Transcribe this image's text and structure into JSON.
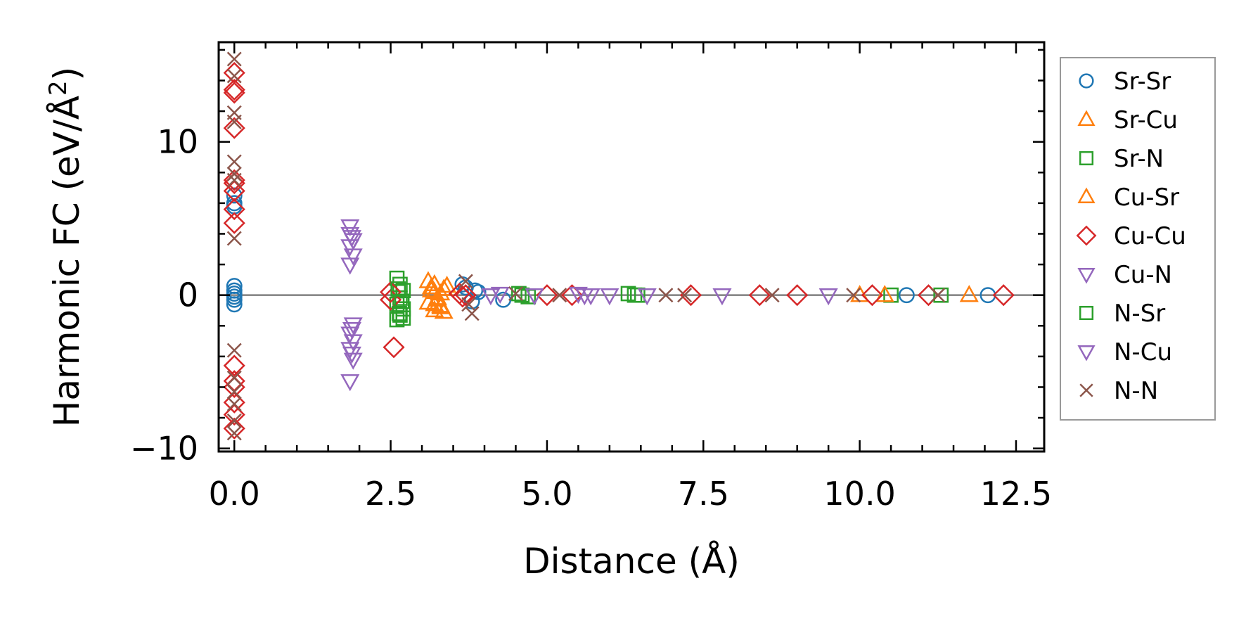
{
  "chart_data": {
    "type": "scatter",
    "xlabel": "Distance (Å)",
    "ylabel_prefix": "Harmonic FC (eV/Å",
    "ylabel_sup": "2",
    "ylabel_suffix": ")",
    "xlim": [
      -0.25,
      12.95
    ],
    "ylim": [
      -10.2,
      16.5
    ],
    "xticks": [
      0.0,
      2.5,
      5.0,
      7.5,
      10.0,
      12.5
    ],
    "xtick_labels": [
      "0.0",
      "2.5",
      "5.0",
      "7.5",
      "10.0",
      "12.5"
    ],
    "yticks": [
      -10,
      0,
      10
    ],
    "ytick_labels": [
      "−10",
      "0",
      "10"
    ],
    "zero_line": true,
    "legend_position": "outside-right",
    "series": [
      {
        "name": "Sr-Sr",
        "marker": "circle",
        "color": "#1f77b4",
        "x": [
          0,
          0,
          0,
          0,
          0,
          0,
          0,
          0,
          0,
          3.65,
          3.7,
          3.8,
          3.85,
          3.9,
          4.3,
          10.75,
          12.05
        ],
        "y": [
          6.0,
          6.5,
          5.8,
          0.6,
          0.3,
          0.1,
          -0.1,
          -0.3,
          -0.6,
          0.7,
          0.5,
          -0.4,
          0.3,
          0.2,
          -0.3,
          0.0,
          0.0
        ]
      },
      {
        "name": "Sr-Cu",
        "marker": "triangle-up",
        "color": "#ff7f0e",
        "x": [
          3.1,
          3.15,
          3.2,
          3.25,
          3.3,
          3.35,
          3.4,
          3.1,
          3.2,
          3.3,
          3.2,
          3.3,
          11.75
        ],
        "y": [
          0.9,
          0.5,
          0.2,
          -0.3,
          -0.7,
          -1.1,
          0.6,
          -0.5,
          0.7,
          0.1,
          -1.0,
          -0.8,
          0.0
        ]
      },
      {
        "name": "Sr-N",
        "marker": "square",
        "color": "#2ca02c",
        "x": [
          2.6,
          2.65,
          2.7,
          2.65,
          2.6,
          2.7,
          2.65,
          2.6,
          2.7,
          4.55,
          4.6,
          4.7,
          6.3,
          6.4,
          10.5,
          11.3
        ],
        "y": [
          1.1,
          0.7,
          0.3,
          -0.2,
          -0.6,
          -0.9,
          -1.3,
          -1.6,
          -1.5,
          0.1,
          0.0,
          -0.1,
          0.1,
          0.0,
          0.0,
          0.0
        ]
      },
      {
        "name": "Cu-Sr",
        "marker": "triangle-up",
        "color": "#ff7f0e",
        "x": [
          3.15,
          3.25,
          3.35,
          3.2,
          10.0,
          10.4
        ],
        "y": [
          0.3,
          -0.2,
          0.4,
          -0.6,
          0.0,
          0.0
        ]
      },
      {
        "name": "Cu-Cu",
        "marker": "diamond",
        "color": "#d62728",
        "x": [
          0,
          0,
          0,
          0,
          0,
          0,
          0,
          0,
          0,
          0,
          0,
          0,
          0,
          0,
          0,
          2.5,
          2.5,
          2.55,
          3.6,
          3.65,
          3.7,
          5.0,
          5.4,
          7.3,
          8.4,
          9.0,
          10.2,
          11.1,
          12.3
        ],
        "y": [
          14.5,
          13.4,
          13.2,
          10.9,
          7.5,
          7.3,
          6.8,
          5.6,
          4.7,
          -4.6,
          -5.6,
          -6.0,
          -7.0,
          -7.8,
          -8.7,
          0.2,
          -0.3,
          -3.4,
          0.1,
          -0.1,
          0.0,
          0.0,
          0.0,
          0.0,
          0.0,
          0.0,
          0.0,
          0.0,
          0.0
        ]
      },
      {
        "name": "Cu-N",
        "marker": "triangle-down",
        "color": "#9467bd",
        "x": [
          1.85,
          1.85,
          1.9,
          1.85,
          1.9,
          1.85,
          1.9,
          1.85,
          1.9,
          1.85,
          1.9,
          1.85,
          4.8,
          5.5,
          5.6,
          7.8,
          9.5
        ],
        "y": [
          4.5,
          4.0,
          3.6,
          3.2,
          2.6,
          2.0,
          -1.9,
          -2.5,
          -3.0,
          -3.5,
          -4.2,
          -5.6,
          0.0,
          0.1,
          0.0,
          0.0,
          0.0
        ]
      },
      {
        "name": "N-Sr",
        "marker": "square",
        "color": "#2ca02c",
        "x": [
          2.62,
          2.68,
          2.64,
          6.45
        ],
        "y": [
          0.4,
          -0.4,
          -1.2,
          0.0
        ]
      },
      {
        "name": "N-Cu",
        "marker": "triangle-down",
        "color": "#9467bd",
        "x": [
          1.88,
          1.88,
          1.88,
          4.1,
          4.25,
          5.7,
          6.0,
          6.6
        ],
        "y": [
          3.8,
          -3.8,
          -2.2,
          0.0,
          0.1,
          0.0,
          0.0,
          0.0
        ]
      },
      {
        "name": "N-N",
        "marker": "x",
        "color": "#8c564b",
        "x": [
          0,
          0,
          0,
          0,
          0,
          0,
          0,
          0,
          0,
          0,
          0,
          0,
          0,
          0,
          3.7,
          3.75,
          3.8,
          4.5,
          5.2,
          6.9,
          7.2,
          8.6,
          9.9,
          11.25
        ],
        "y": [
          15.4,
          14.3,
          11.9,
          11.3,
          8.7,
          7.9,
          7.5,
          3.7,
          -3.6,
          -5.4,
          -6.3,
          -7.1,
          -8.2,
          -9.0,
          0.9,
          -0.6,
          -1.2,
          0.1,
          0.0,
          0.0,
          0.0,
          0.0,
          0.0,
          0.0
        ]
      }
    ]
  }
}
